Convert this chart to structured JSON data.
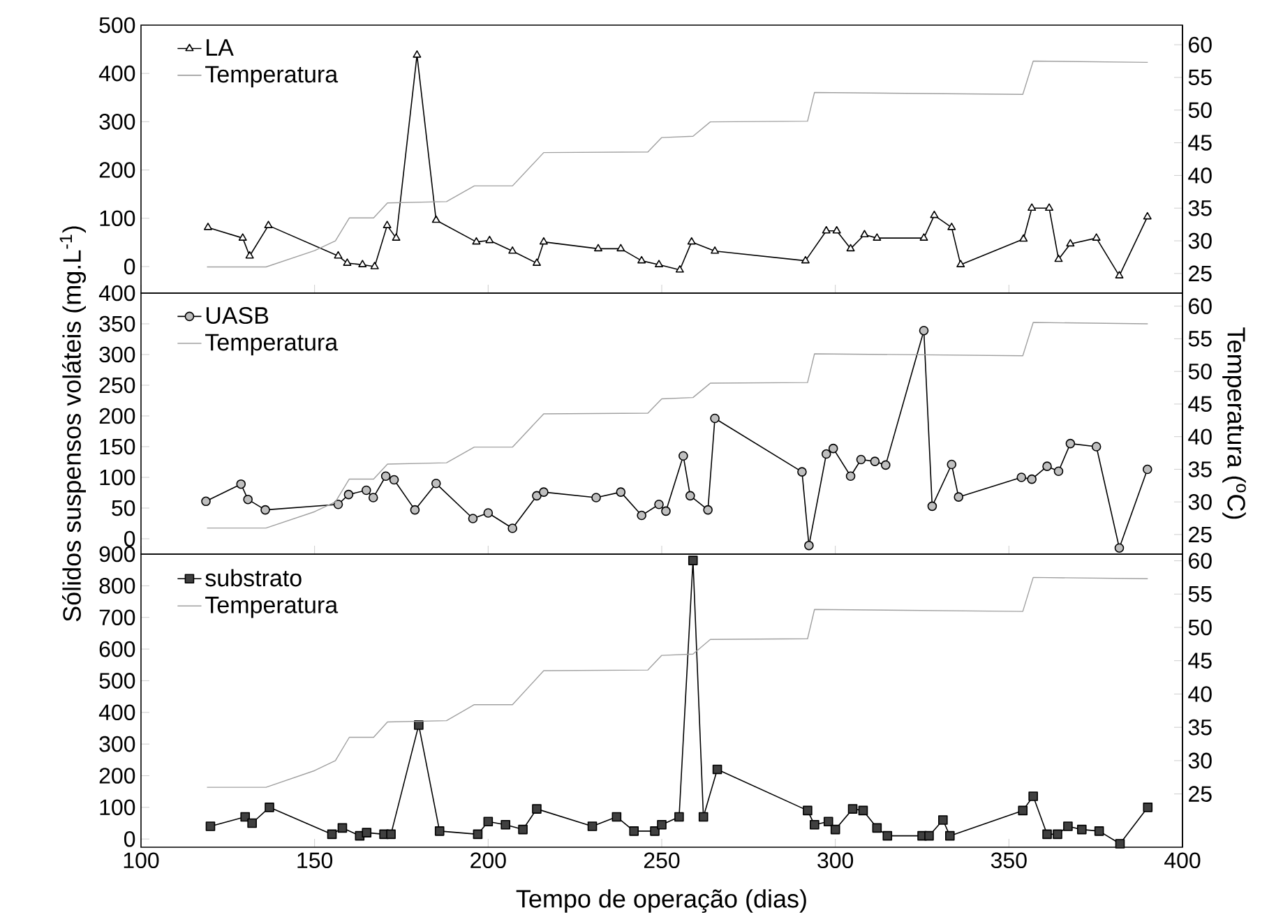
{
  "chart_data": [
    {
      "type": "line",
      "xlim": [
        100,
        400
      ],
      "xticks": [
        100,
        150,
        200,
        250,
        300,
        350,
        400
      ],
      "ylim": [
        -55,
        500
      ],
      "yticks": [
        0,
        100,
        200,
        300,
        400,
        500
      ],
      "y2lim": [
        22,
        63
      ],
      "y2ticks": [
        25,
        30,
        35,
        40,
        45,
        50,
        55,
        60
      ],
      "tick_labels": "y",
      "legend": "top left",
      "series": [
        {
          "name": "LA",
          "color": "#000000",
          "marker": "triangle",
          "line_style": "solid",
          "x": [
            119.3,
            129.3,
            131.3,
            136.7,
            156.8,
            159.4,
            163.8,
            167.3,
            170.9,
            173.5,
            179.5,
            185,
            196.6,
            200.4,
            207,
            214,
            216,
            231.7,
            238.2,
            244.2,
            249.2,
            255.2,
            258.6,
            265.3,
            291.4,
            297.4,
            300.4,
            304.4,
            308.4,
            312,
            325.5,
            328.5,
            333.5,
            336.1,
            354.2,
            356.6,
            361.6,
            364.3,
            367.7,
            375.2,
            381.8,
            389.9
          ],
          "values": [
            81,
            59,
            22,
            85,
            22,
            7,
            4,
            0,
            85,
            59,
            438,
            96,
            51,
            54,
            32,
            7,
            51,
            37,
            37,
            12,
            4,
            -7,
            51,
            32,
            12,
            74,
            74,
            37,
            66,
            59,
            59,
            106,
            81,
            4,
            57,
            121,
            121,
            15,
            47,
            59,
            -19,
            103
          ]
        },
        {
          "name": "Temperatura",
          "color": "#a0a0a0",
          "marker": "none",
          "line_style": "solid",
          "axis": "y2",
          "x": [
            119,
            136,
            150,
            156,
            160,
            167,
            171,
            188,
            196,
            207,
            216,
            246,
            250,
            259,
            264,
            292,
            294,
            354,
            357,
            390
          ],
          "values": [
            26,
            26,
            28.5,
            30,
            33.5,
            33.5,
            35.8,
            36,
            38.4,
            38.4,
            43.5,
            43.6,
            45.8,
            46,
            48.2,
            48.3,
            52.7,
            52.4,
            57.5,
            57.3
          ]
        }
      ]
    },
    {
      "type": "line",
      "xlim": [
        100,
        400
      ],
      "xticks": [
        100,
        150,
        200,
        250,
        300,
        350,
        400
      ],
      "ylim": [
        -25,
        400
      ],
      "yticks": [
        0,
        50,
        100,
        150,
        200,
        250,
        300,
        350,
        400
      ],
      "y2lim": [
        22,
        62
      ],
      "y2ticks": [
        25,
        30,
        35,
        40,
        45,
        50,
        55,
        60
      ],
      "tick_labels": "y",
      "legend": "top left",
      "ylabel": "Sólidos suspensos voláteis (mg.L$^{-1}$)",
      "y2label": "Temperatura ($^{o}$C)",
      "series": [
        {
          "name": "UASB",
          "color": "#000000",
          "marker": "circle",
          "line_style": "solid",
          "x": [
            118.7,
            128.8,
            130.8,
            135.8,
            156.8,
            159.8,
            164.9,
            166.9,
            170.5,
            172.9,
            178.9,
            185,
            195.6,
            200,
            207,
            214,
            216,
            231.1,
            238.2,
            244.2,
            249.2,
            251.2,
            256.2,
            258.2,
            263.3,
            265.3,
            290.4,
            292.4,
            297.4,
            299.4,
            304.4,
            307.4,
            311.4,
            314.5,
            325.5,
            327.9,
            333.5,
            335.5,
            353.6,
            356.6,
            361,
            364.3,
            367.7,
            375.2,
            381.8,
            389.9
          ],
          "values": [
            61,
            89,
            64,
            47,
            56,
            72,
            79,
            67,
            102,
            96,
            47,
            90,
            33,
            42,
            17,
            70,
            76,
            67,
            76,
            38,
            56,
            45,
            135,
            70,
            47,
            196,
            109,
            -11,
            138,
            147,
            102,
            129,
            126,
            120,
            339,
            53,
            121,
            68,
            100,
            97,
            118,
            110,
            155,
            150,
            -15,
            113
          ]
        },
        {
          "name": "Temperatura",
          "color": "#a0a0a0",
          "marker": "none",
          "line_style": "solid",
          "axis": "y2",
          "x": [
            119,
            136,
            150,
            156,
            160,
            167,
            171,
            188,
            196,
            207,
            216,
            246,
            250,
            259,
            264,
            292,
            294,
            354,
            357,
            390
          ],
          "values": [
            26,
            26,
            28.5,
            30,
            33.5,
            33.5,
            35.8,
            36,
            38.4,
            38.4,
            43.5,
            43.6,
            45.8,
            46,
            48.2,
            48.3,
            52.7,
            52.4,
            57.5,
            57.3
          ]
        }
      ]
    },
    {
      "type": "line",
      "xlim": [
        100,
        400
      ],
      "xticks": [
        100,
        150,
        200,
        250,
        300,
        350,
        400
      ],
      "ylim": [
        -26,
        900
      ],
      "yticks": [
        0,
        100,
        200,
        300,
        400,
        500,
        600,
        700,
        800,
        900
      ],
      "y2lim": [
        17,
        61
      ],
      "y2ticks": [
        25,
        30,
        35,
        40,
        45,
        50,
        55,
        60
      ],
      "legend": "top left",
      "xlabel": "Tempo de operação (dias)",
      "series": [
        {
          "name": "substrato",
          "color": "#000000",
          "marker": "square",
          "line_style": "solid",
          "x": [
            120,
            130,
            132,
            137,
            155,
            158,
            163,
            165,
            170,
            172,
            180,
            186,
            197,
            200,
            205,
            210,
            214,
            230,
            237,
            242,
            248,
            250,
            255,
            259,
            262,
            266,
            292,
            294,
            298,
            300,
            305,
            308,
            312,
            315,
            325,
            327,
            331,
            333,
            354,
            357,
            361,
            364,
            367,
            371,
            376,
            382,
            390
          ],
          "values": [
            40,
            70,
            50,
            100,
            15,
            35,
            10,
            20,
            15,
            15,
            360,
            25,
            15,
            55,
            45,
            30,
            95,
            40,
            70,
            25,
            25,
            45,
            70,
            880,
            70,
            220,
            90,
            45,
            55,
            30,
            95,
            90,
            35,
            10,
            10,
            10,
            60,
            10,
            90,
            135,
            15,
            15,
            40,
            30,
            25,
            -15,
            100
          ]
        },
        {
          "name": "Temperatura",
          "color": "#a0a0a0",
          "marker": "none",
          "line_style": "solid",
          "axis": "y2",
          "x": [
            119,
            136,
            150,
            156,
            160,
            167,
            171,
            188,
            196,
            207,
            216,
            246,
            250,
            259,
            264,
            292,
            294,
            354,
            357,
            390
          ],
          "values": [
            26,
            26,
            28.5,
            30,
            33.5,
            33.5,
            35.8,
            36,
            38.4,
            38.4,
            43.5,
            43.6,
            45.8,
            46,
            48.2,
            48.3,
            52.7,
            52.4,
            57.5,
            57.3
          ]
        }
      ]
    }
  ]
}
